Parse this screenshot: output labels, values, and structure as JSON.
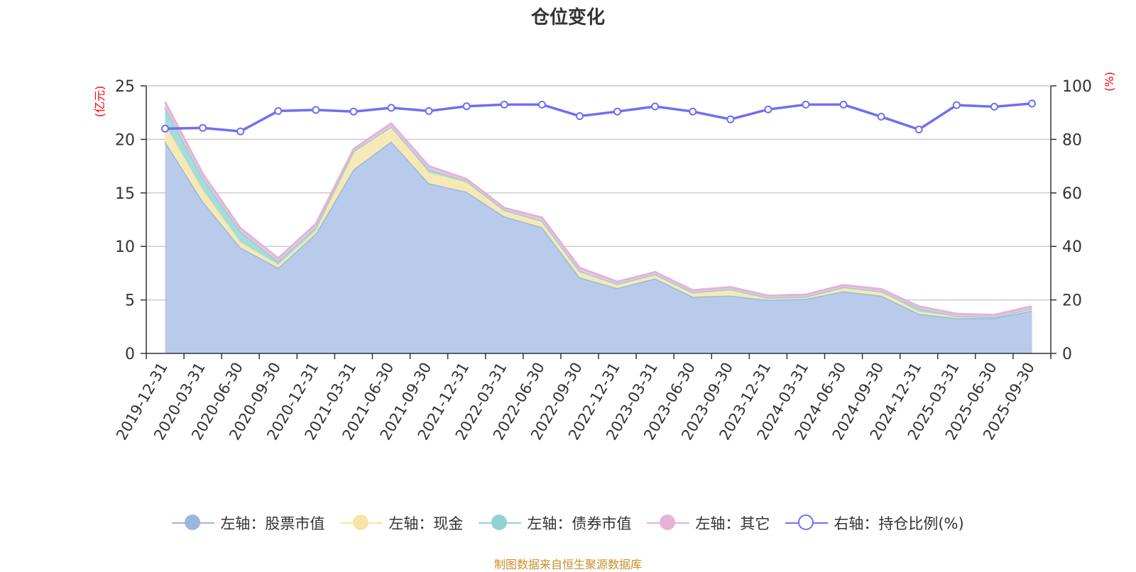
{
  "source_note": "制图数据来自恒生聚源数据库",
  "chart_data": {
    "type": "area",
    "title": "仓位变化",
    "y_left_unit": "(亿元)",
    "y_right_unit": "(%)",
    "y_left_ticks": [
      "0",
      "5",
      "10",
      "15",
      "20",
      "25"
    ],
    "y_right_ticks": [
      "0",
      "20",
      "40",
      "60",
      "80",
      "100"
    ],
    "ylim_left": [
      0,
      25
    ],
    "ylim_right": [
      0,
      100
    ],
    "grid": true,
    "legend_position": "bottom",
    "categories": [
      "2019-12-31",
      "2020-03-31",
      "2020-06-30",
      "2020-09-30",
      "2020-12-31",
      "2021-03-31",
      "2021-06-30",
      "2021-09-30",
      "2021-12-31",
      "2022-03-31",
      "2022-06-30",
      "2022-09-30",
      "2022-12-31",
      "2023-03-31",
      "2023-06-30",
      "2023-09-30",
      "2023-12-31",
      "2024-03-31",
      "2024-06-30",
      "2024-09-30",
      "2024-12-31",
      "2025-03-31",
      "2025-06-30",
      "2025-09-30"
    ],
    "stacked_series": [
      {
        "name": "左轴：股票市值",
        "color": "#9bb7e0",
        "fill": "#b8cbea",
        "values": [
          19.8,
          14.2,
          9.9,
          8.0,
          11.2,
          17.2,
          19.8,
          15.9,
          15.1,
          12.8,
          11.8,
          7.1,
          6.1,
          7.0,
          5.3,
          5.4,
          5.0,
          5.1,
          5.8,
          5.4,
          3.7,
          3.3,
          3.3,
          4.0
        ]
      },
      {
        "name": "左轴：现金",
        "color": "#f6e6a6",
        "fill": "#f7e9b5",
        "values": [
          1.6,
          1.1,
          0.5,
          0.3,
          0.3,
          1.7,
          1.4,
          1.0,
          0.9,
          0.6,
          0.6,
          0.6,
          0.4,
          0.4,
          0.4,
          0.6,
          0.2,
          0.2,
          0.4,
          0.4,
          0.2,
          0.2,
          0.1,
          0.2
        ]
      },
      {
        "name": "左轴：债券市值",
        "color": "#8fd3d4",
        "fill": "#a6dbdc",
        "values": [
          1.6,
          1.1,
          1.0,
          0.3,
          0.3,
          0.0,
          0.0,
          0.3,
          0.1,
          0.0,
          0.0,
          0.0,
          0.0,
          0.0,
          0.0,
          0.0,
          0.0,
          0.0,
          0.0,
          0.0,
          0.3,
          0.0,
          0.0,
          0.0
        ]
      },
      {
        "name": "左轴：其它",
        "color": "#e6b2d8",
        "fill": "#eec4e2",
        "values": [
          0.5,
          0.4,
          0.3,
          0.3,
          0.3,
          0.2,
          0.3,
          0.3,
          0.2,
          0.2,
          0.3,
          0.3,
          0.2,
          0.2,
          0.2,
          0.2,
          0.2,
          0.2,
          0.2,
          0.2,
          0.2,
          0.2,
          0.2,
          0.2
        ]
      }
    ],
    "line_series": {
      "name": "右轴：持仓比例(%)",
      "color": "#6f6ff2",
      "values": [
        84.0,
        84.3,
        83.0,
        90.6,
        91.0,
        90.4,
        91.8,
        90.6,
        92.4,
        93.0,
        93.0,
        88.7,
        90.4,
        92.3,
        90.4,
        87.5,
        91.2,
        93.0,
        93.0,
        88.5,
        83.7,
        92.8,
        92.2,
        93.4
      ]
    }
  }
}
